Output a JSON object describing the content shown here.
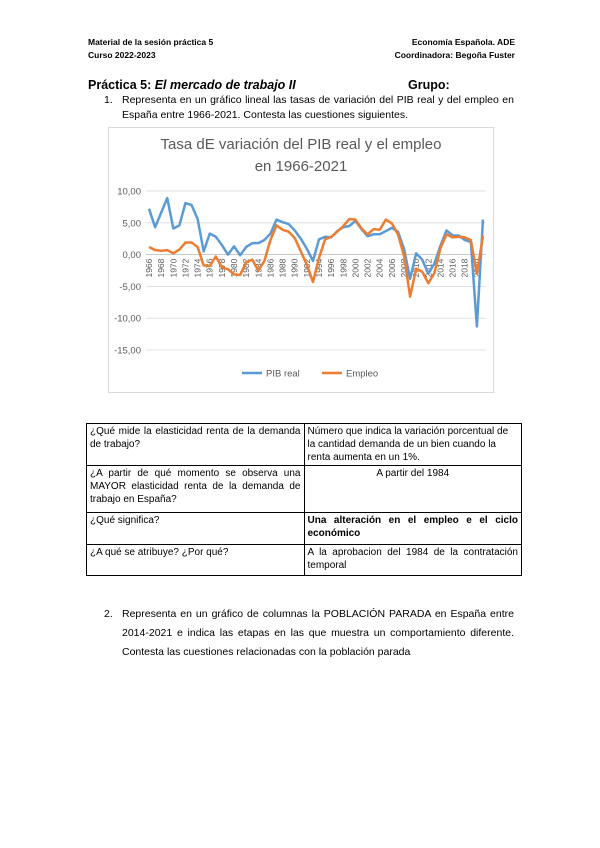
{
  "header": {
    "left": [
      "Material de la sesión práctica 5",
      "Curso 2022-2023"
    ],
    "right": [
      "Economía Española. ADE",
      "Coordinadora: Begoña Fuster"
    ]
  },
  "practice": {
    "label": "Práctica 5:",
    "title": "El mercado de trabajo II",
    "group": "Grupo:"
  },
  "questions": [
    {
      "number": "1.",
      "text": "Representa en un gráfico lineal las tasas de variación del PIB real y del empleo en España entre 1966-2021. Contesta las cuestiones siguientes."
    },
    {
      "number": "2.",
      "text": "Representa en un gráfico de columnas la POBLACIÓN PARADA en España entre 2014-2021 e indica las etapas en las que muestra un comportamiento diferente. Contesta las cuestiones relacionadas con la población parada"
    }
  ],
  "table": {
    "rows": [
      [
        "¿Qué mide la elasticidad renta de la demanda de trabajo?",
        "Número que indica la variación porcentual de la cantidad demanda de un bien cuando la renta aumenta en un 1%."
      ],
      [
        "¿A partir de qué momento se observa una MAYOR elasticidad renta de la demanda de trabajo en España?",
        "A partir del 1984"
      ],
      [
        "¿Qué significa?",
        "Una alteración en el empleo e el ciclo económico"
      ],
      [
        "¿A qué se atribuye?  ¿Por qué?",
        "A la aprobacion del 1984 de la contratación temporal"
      ]
    ]
  },
  "chart_data": {
    "type": "line",
    "title": "Tasa dE variación del PIB real y el empleo en 1966-2021",
    "categories": [
      "1966",
      null,
      "1968",
      null,
      "1970",
      null,
      "1972",
      null,
      "1974",
      null,
      "1976",
      null,
      "1978",
      null,
      "1980",
      null,
      "1982",
      null,
      "1984",
      null,
      "1986",
      null,
      "1988",
      null,
      "1990",
      null,
      "1992",
      null,
      "1994",
      null,
      "1996",
      null,
      "1998",
      null,
      "2000",
      null,
      "2002",
      null,
      "2004",
      null,
      "2006",
      null,
      "2008",
      null,
      "2010",
      null,
      "2012",
      null,
      "2014",
      null,
      "2016",
      null,
      "2018",
      null,
      "2020",
      null
    ],
    "series": [
      {
        "name": "PIB real",
        "color": "#5b9bd5",
        "values": [
          7.2,
          4.3,
          6.6,
          8.9,
          4.1,
          4.6,
          8.1,
          7.8,
          5.6,
          0.5,
          3.3,
          2.8,
          1.5,
          0.0,
          1.3,
          -0.1,
          1.2,
          1.8,
          1.8,
          2.3,
          3.3,
          5.5,
          5.1,
          4.8,
          3.8,
          2.5,
          0.9,
          -1.0,
          2.4,
          2.8,
          2.7,
          3.7,
          4.3,
          4.5,
          5.3,
          4.0,
          2.9,
          3.2,
          3.2,
          3.7,
          4.2,
          3.6,
          0.9,
          -3.8,
          0.2,
          -0.8,
          -3.0,
          -1.4,
          1.4,
          3.8,
          3.0,
          3.0,
          2.3,
          2.0,
          -11.3,
          5.5
        ]
      },
      {
        "name": "Empleo",
        "color": "#ed7d31",
        "values": [
          1.2,
          0.7,
          0.6,
          0.7,
          0.2,
          0.8,
          1.9,
          1.9,
          1.2,
          -1.7,
          -1.8,
          -0.3,
          -2.0,
          -2.3,
          -3.1,
          -3.2,
          -1.2,
          -0.8,
          -2.5,
          -1.0,
          2.3,
          4.6,
          3.9,
          3.6,
          2.6,
          0.5,
          -1.6,
          -4.3,
          -0.5,
          2.4,
          2.8,
          3.6,
          4.5,
          5.6,
          5.5,
          4.1,
          3.2,
          4.0,
          3.9,
          5.5,
          4.9,
          3.2,
          -0.2,
          -6.6,
          -2.2,
          -2.7,
          -4.5,
          -2.9,
          1.0,
          3.2,
          2.7,
          2.8,
          2.7,
          2.3,
          -3.0,
          3.0
        ]
      }
    ],
    "ylim": [
      -15,
      10
    ],
    "yticks": [
      {
        "value": -15,
        "label": "-15,00"
      },
      {
        "value": -10,
        "label": "-10,00"
      },
      {
        "value": -5,
        "label": "-5,00"
      },
      {
        "value": 0,
        "label": "0,00"
      },
      {
        "value": 5,
        "label": "5,00"
      },
      {
        "value": 10,
        "label": "10,00"
      }
    ],
    "grid": true,
    "legend": "bottom"
  }
}
